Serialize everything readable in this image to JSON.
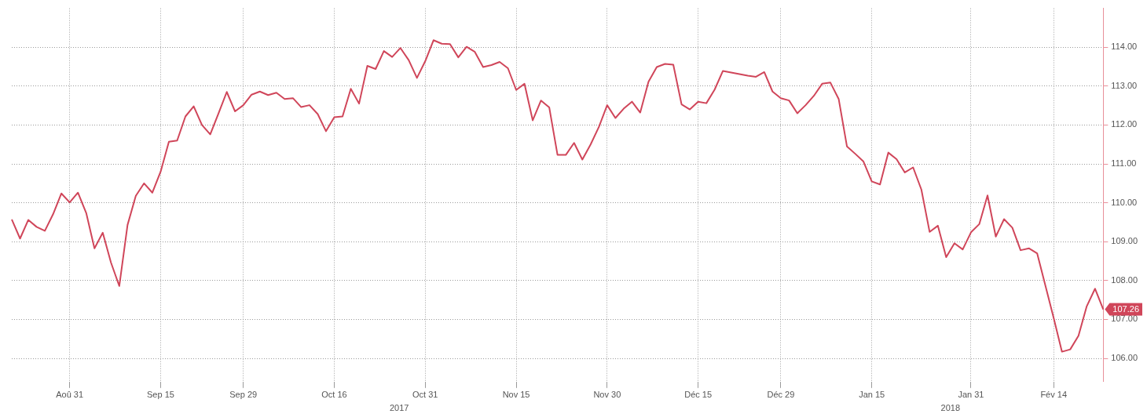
{
  "chart_data": {
    "type": "line",
    "categories": [
      null,
      null,
      null,
      null,
      null,
      null,
      null,
      "Aoû 31",
      null,
      null,
      null,
      null,
      null,
      null,
      null,
      null,
      null,
      null,
      "Sep 15",
      null,
      null,
      null,
      null,
      null,
      null,
      null,
      null,
      null,
      "Sep 29",
      null,
      null,
      null,
      null,
      null,
      null,
      null,
      null,
      null,
      null,
      "Oct 16",
      null,
      null,
      null,
      null,
      null,
      null,
      null,
      null,
      null,
      null,
      "Oct 31",
      null,
      null,
      null,
      null,
      null,
      null,
      null,
      null,
      null,
      null,
      "Nov 15",
      null,
      null,
      null,
      null,
      null,
      null,
      null,
      null,
      null,
      null,
      "Nov 30",
      null,
      null,
      null,
      null,
      null,
      null,
      null,
      null,
      null,
      null,
      "Déc 15",
      null,
      null,
      null,
      null,
      null,
      null,
      null,
      null,
      null,
      "Déc 29",
      null,
      null,
      null,
      null,
      null,
      null,
      null,
      null,
      null,
      null,
      "Jan 15",
      null,
      null,
      null,
      null,
      null,
      null,
      null,
      null,
      null,
      null,
      null,
      "Jan 31",
      null,
      null,
      null,
      null,
      null,
      null,
      null,
      null,
      null,
      "Fév 14",
      null,
      null,
      null,
      null,
      null,
      null
    ],
    "series": [
      {
        "color": "#d0465a",
        "values": [
          109.57,
          109.08,
          109.56,
          109.38,
          109.28,
          109.71,
          110.24,
          110.01,
          110.26,
          109.74,
          108.83,
          109.23,
          108.46,
          107.86,
          109.43,
          110.18,
          110.5,
          110.26,
          110.8,
          111.57,
          111.6,
          112.22,
          112.48,
          112.0,
          111.76,
          112.3,
          112.85,
          112.35,
          112.51,
          112.78,
          112.86,
          112.77,
          112.83,
          112.67,
          112.69,
          112.46,
          112.51,
          112.28,
          111.84,
          112.2,
          112.22,
          112.93,
          112.55,
          113.52,
          113.44,
          113.9,
          113.75,
          113.98,
          113.67,
          113.21,
          113.64,
          114.18,
          114.09,
          114.08,
          113.74,
          114.01,
          113.88,
          113.49,
          113.54,
          113.62,
          113.46,
          112.9,
          113.06,
          112.12,
          112.63,
          112.45,
          111.23,
          111.23,
          111.54,
          111.11,
          111.5,
          111.95,
          112.51,
          112.18,
          112.42,
          112.6,
          112.32,
          113.11,
          113.49,
          113.57,
          113.55,
          112.53,
          112.4,
          112.6,
          112.56,
          112.91,
          113.39,
          113.35,
          113.31,
          113.27,
          113.24,
          113.36,
          112.86,
          112.69,
          112.63,
          112.3,
          112.51,
          112.75,
          113.06,
          113.09,
          112.67,
          111.45,
          111.26,
          111.06,
          110.55,
          110.47,
          111.29,
          111.12,
          110.78,
          110.91,
          110.34,
          109.25,
          109.41,
          108.6,
          108.96,
          108.8,
          109.24,
          109.45,
          110.19,
          109.13,
          109.58,
          109.36,
          108.78,
          108.83,
          108.7,
          107.87,
          107.04,
          106.17,
          106.23,
          106.58,
          107.34,
          107.79,
          107.26
        ],
        "value_labels": [
          null,
          null,
          null,
          null,
          null,
          null,
          null,
          null,
          null,
          null,
          null,
          null,
          null,
          null,
          null,
          null,
          null,
          null,
          null,
          null,
          null,
          null,
          null,
          null,
          null,
          null,
          null,
          null,
          null,
          null,
          null,
          null,
          null,
          null,
          null,
          null,
          null,
          null,
          null,
          null,
          null,
          null,
          null,
          null,
          null,
          null,
          null,
          null,
          null,
          null,
          null,
          null,
          null,
          null,
          null,
          null,
          null,
          null,
          null,
          null,
          null,
          null,
          null,
          null,
          null,
          null,
          null,
          null,
          null,
          null,
          null,
          null,
          null,
          null,
          null,
          null,
          null,
          null,
          null,
          null,
          null,
          null,
          null,
          null,
          null,
          null,
          null,
          null,
          null,
          null,
          null,
          null,
          null,
          null,
          null,
          null,
          null,
          null,
          null,
          null,
          null,
          null,
          null,
          null,
          null,
          null,
          null,
          null,
          null,
          null,
          null,
          null,
          null,
          null,
          null,
          null,
          null,
          null,
          null,
          null,
          null,
          null,
          null,
          null,
          null,
          null,
          null,
          null,
          null,
          null,
          null,
          null,
          "107.26"
        ]
      }
    ],
    "ylim": [
      105.4,
      115
    ],
    "yticks": [
      {
        "value": 106,
        "label": "106.00"
      },
      {
        "value": 107,
        "label": "107.00"
      },
      {
        "value": 108,
        "label": "108.00"
      },
      {
        "value": 109,
        "label": "109.00"
      },
      {
        "value": 110,
        "label": "110.00"
      },
      {
        "value": 111,
        "label": "111.00"
      },
      {
        "value": 112,
        "label": "112.00"
      },
      {
        "value": 113,
        "label": "113.00"
      },
      {
        "value": 114,
        "label": "114.00"
      }
    ],
    "annotations": [
      "2017",
      "2018"
    ],
    "grid": true,
    "legend": false,
    "marker": "none",
    "line_style": "solid"
  }
}
